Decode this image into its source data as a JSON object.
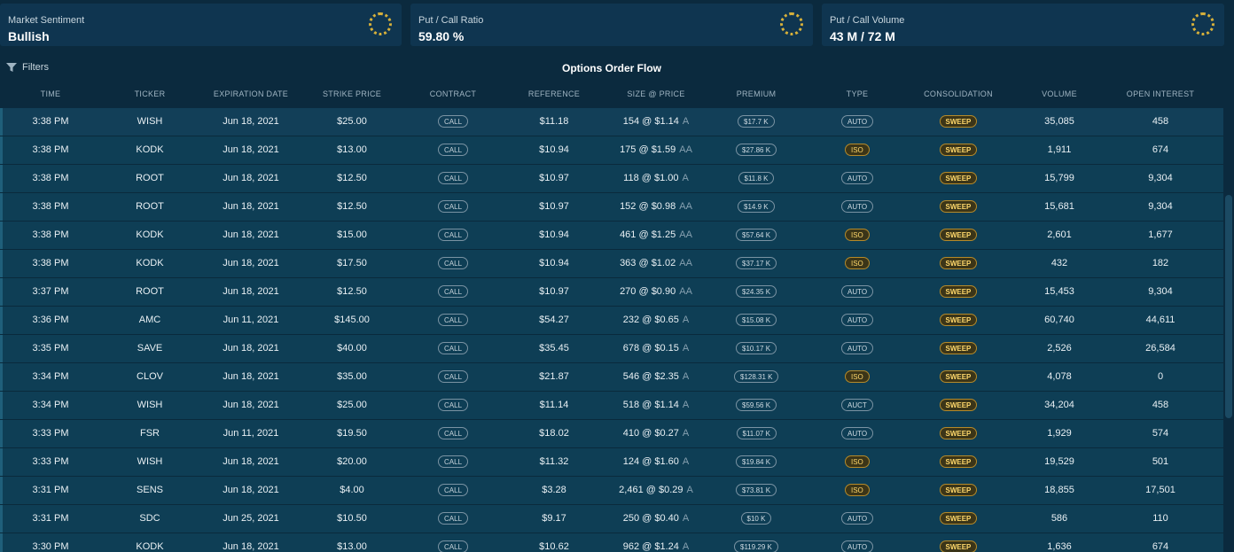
{
  "cards": [
    {
      "label": "Market Sentiment",
      "value": "Bullish"
    },
    {
      "label": "Put / Call Ratio",
      "value": "59.80 %"
    },
    {
      "label": "Put / Call Volume",
      "value": "43 M / 72 M"
    }
  ],
  "filters_label": "Filters",
  "title": "Options Order Flow",
  "columns": [
    "TIME",
    "TICKER",
    "EXPIRATION DATE",
    "STRIKE PRICE",
    "CONTRACT",
    "REFERENCE",
    "SIZE @ PRICE",
    "PREMIUM",
    "TYPE",
    "CONSOLIDATION",
    "VOLUME",
    "OPEN INTEREST"
  ],
  "rows": [
    {
      "time": "3:38 PM",
      "ticker": "WISH",
      "exp": "Jun 18, 2021",
      "strike": "$25.00",
      "contract": "CALL",
      "ref": "$11.18",
      "size": "154 @ $1.14",
      "suffix": "A",
      "premium": "$17.7 K",
      "type": "AUTO",
      "cons": "SWEEP",
      "volume": "35,085",
      "oi": "458"
    },
    {
      "time": "3:38 PM",
      "ticker": "KODK",
      "exp": "Jun 18, 2021",
      "strike": "$13.00",
      "contract": "CALL",
      "ref": "$10.94",
      "size": "175 @ $1.59",
      "suffix": "AA",
      "premium": "$27.86 K",
      "type": "ISO",
      "cons": "SWEEP",
      "volume": "1,911",
      "oi": "674"
    },
    {
      "time": "3:38 PM",
      "ticker": "ROOT",
      "exp": "Jun 18, 2021",
      "strike": "$12.50",
      "contract": "CALL",
      "ref": "$10.97",
      "size": "118 @ $1.00",
      "suffix": "A",
      "premium": "$11.8 K",
      "type": "AUTO",
      "cons": "SWEEP",
      "volume": "15,799",
      "oi": "9,304"
    },
    {
      "time": "3:38 PM",
      "ticker": "ROOT",
      "exp": "Jun 18, 2021",
      "strike": "$12.50",
      "contract": "CALL",
      "ref": "$10.97",
      "size": "152 @ $0.98",
      "suffix": "AA",
      "premium": "$14.9 K",
      "type": "AUTO",
      "cons": "SWEEP",
      "volume": "15,681",
      "oi": "9,304"
    },
    {
      "time": "3:38 PM",
      "ticker": "KODK",
      "exp": "Jun 18, 2021",
      "strike": "$15.00",
      "contract": "CALL",
      "ref": "$10.94",
      "size": "461 @ $1.25",
      "suffix": "AA",
      "premium": "$57.64 K",
      "type": "ISO",
      "cons": "SWEEP",
      "volume": "2,601",
      "oi": "1,677"
    },
    {
      "time": "3:38 PM",
      "ticker": "KODK",
      "exp": "Jun 18, 2021",
      "strike": "$17.50",
      "contract": "CALL",
      "ref": "$10.94",
      "size": "363 @ $1.02",
      "suffix": "AA",
      "premium": "$37.17 K",
      "type": "ISO",
      "cons": "SWEEP",
      "volume": "432",
      "oi": "182"
    },
    {
      "time": "3:37 PM",
      "ticker": "ROOT",
      "exp": "Jun 18, 2021",
      "strike": "$12.50",
      "contract": "CALL",
      "ref": "$10.97",
      "size": "270 @ $0.90",
      "suffix": "AA",
      "premium": "$24.35 K",
      "type": "AUTO",
      "cons": "SWEEP",
      "volume": "15,453",
      "oi": "9,304"
    },
    {
      "time": "3:36 PM",
      "ticker": "AMC",
      "exp": "Jun 11, 2021",
      "strike": "$145.00",
      "contract": "CALL",
      "ref": "$54.27",
      "size": "232 @ $0.65",
      "suffix": "A",
      "premium": "$15.08 K",
      "type": "AUTO",
      "cons": "SWEEP",
      "volume": "60,740",
      "oi": "44,611"
    },
    {
      "time": "3:35 PM",
      "ticker": "SAVE",
      "exp": "Jun 18, 2021",
      "strike": "$40.00",
      "contract": "CALL",
      "ref": "$35.45",
      "size": "678 @ $0.15",
      "suffix": "A",
      "premium": "$10.17 K",
      "type": "AUTO",
      "cons": "SWEEP",
      "volume": "2,526",
      "oi": "26,584"
    },
    {
      "time": "3:34 PM",
      "ticker": "CLOV",
      "exp": "Jun 18, 2021",
      "strike": "$35.00",
      "contract": "CALL",
      "ref": "$21.87",
      "size": "546 @ $2.35",
      "suffix": "A",
      "premium": "$128.31 K",
      "type": "ISO",
      "cons": "SWEEP",
      "volume": "4,078",
      "oi": "0"
    },
    {
      "time": "3:34 PM",
      "ticker": "WISH",
      "exp": "Jun 18, 2021",
      "strike": "$25.00",
      "contract": "CALL",
      "ref": "$11.14",
      "size": "518 @ $1.14",
      "suffix": "A",
      "premium": "$59.56 K",
      "type": "AUCT",
      "cons": "SWEEP",
      "volume": "34,204",
      "oi": "458"
    },
    {
      "time": "3:33 PM",
      "ticker": "FSR",
      "exp": "Jun 11, 2021",
      "strike": "$19.50",
      "contract": "CALL",
      "ref": "$18.02",
      "size": "410 @ $0.27",
      "suffix": "A",
      "premium": "$11.07 K",
      "type": "AUTO",
      "cons": "SWEEP",
      "volume": "1,929",
      "oi": "574"
    },
    {
      "time": "3:33 PM",
      "ticker": "WISH",
      "exp": "Jun 18, 2021",
      "strike": "$20.00",
      "contract": "CALL",
      "ref": "$11.32",
      "size": "124 @ $1.60",
      "suffix": "A",
      "premium": "$19.84 K",
      "type": "ISO",
      "cons": "SWEEP",
      "volume": "19,529",
      "oi": "501"
    },
    {
      "time": "3:31 PM",
      "ticker": "SENS",
      "exp": "Jun 18, 2021",
      "strike": "$4.00",
      "contract": "CALL",
      "ref": "$3.28",
      "size": "2,461 @ $0.29",
      "suffix": "A",
      "premium": "$73.81 K",
      "type": "ISO",
      "cons": "SWEEP",
      "volume": "18,855",
      "oi": "17,501"
    },
    {
      "time": "3:31 PM",
      "ticker": "SDC",
      "exp": "Jun 25, 2021",
      "strike": "$10.50",
      "contract": "CALL",
      "ref": "$9.17",
      "size": "250 @ $0.40",
      "suffix": "A",
      "premium": "$10 K",
      "type": "AUTO",
      "cons": "SWEEP",
      "volume": "586",
      "oi": "110"
    },
    {
      "time": "3:30 PM",
      "ticker": "KODK",
      "exp": "Jun 18, 2021",
      "strike": "$13.00",
      "contract": "CALL",
      "ref": "$10.62",
      "size": "962 @ $1.24",
      "suffix": "A",
      "premium": "$119.29 K",
      "type": "AUTO",
      "cons": "SWEEP",
      "volume": "1,636",
      "oi": "674"
    }
  ]
}
